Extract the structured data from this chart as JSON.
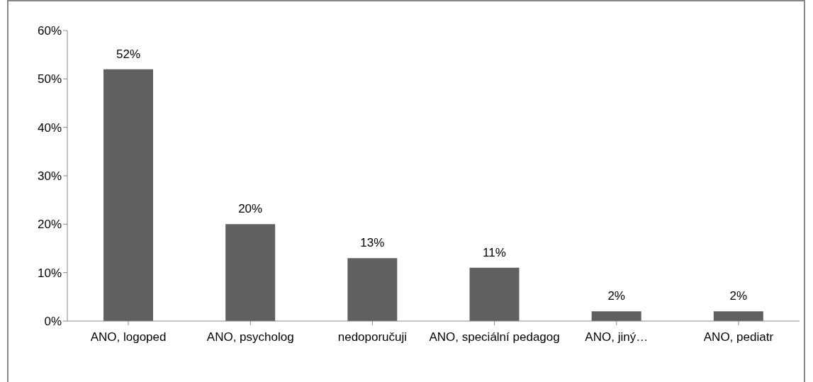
{
  "chart_data": {
    "type": "bar",
    "categories": [
      "ANO, logoped",
      "ANO, psycholog",
      "nedoporučuji",
      "ANO, speciální pedagog",
      "ANO, jiný…",
      "ANO, pediatr"
    ],
    "values": [
      52,
      20,
      13,
      11,
      2,
      2
    ],
    "value_labels": [
      "52%",
      "20%",
      "13%",
      "11%",
      "2%",
      "2%"
    ],
    "color": "#606060",
    "ylim": [
      0,
      60
    ],
    "yticks": [
      {
        "value": 0,
        "label": "0%"
      },
      {
        "value": 10,
        "label": "10%"
      },
      {
        "value": 20,
        "label": "20%"
      },
      {
        "value": 30,
        "label": "30%"
      },
      {
        "value": 40,
        "label": "40%"
      },
      {
        "value": 50,
        "label": "50%"
      },
      {
        "value": 60,
        "label": "60%"
      }
    ],
    "grid": false,
    "legend": false
  }
}
